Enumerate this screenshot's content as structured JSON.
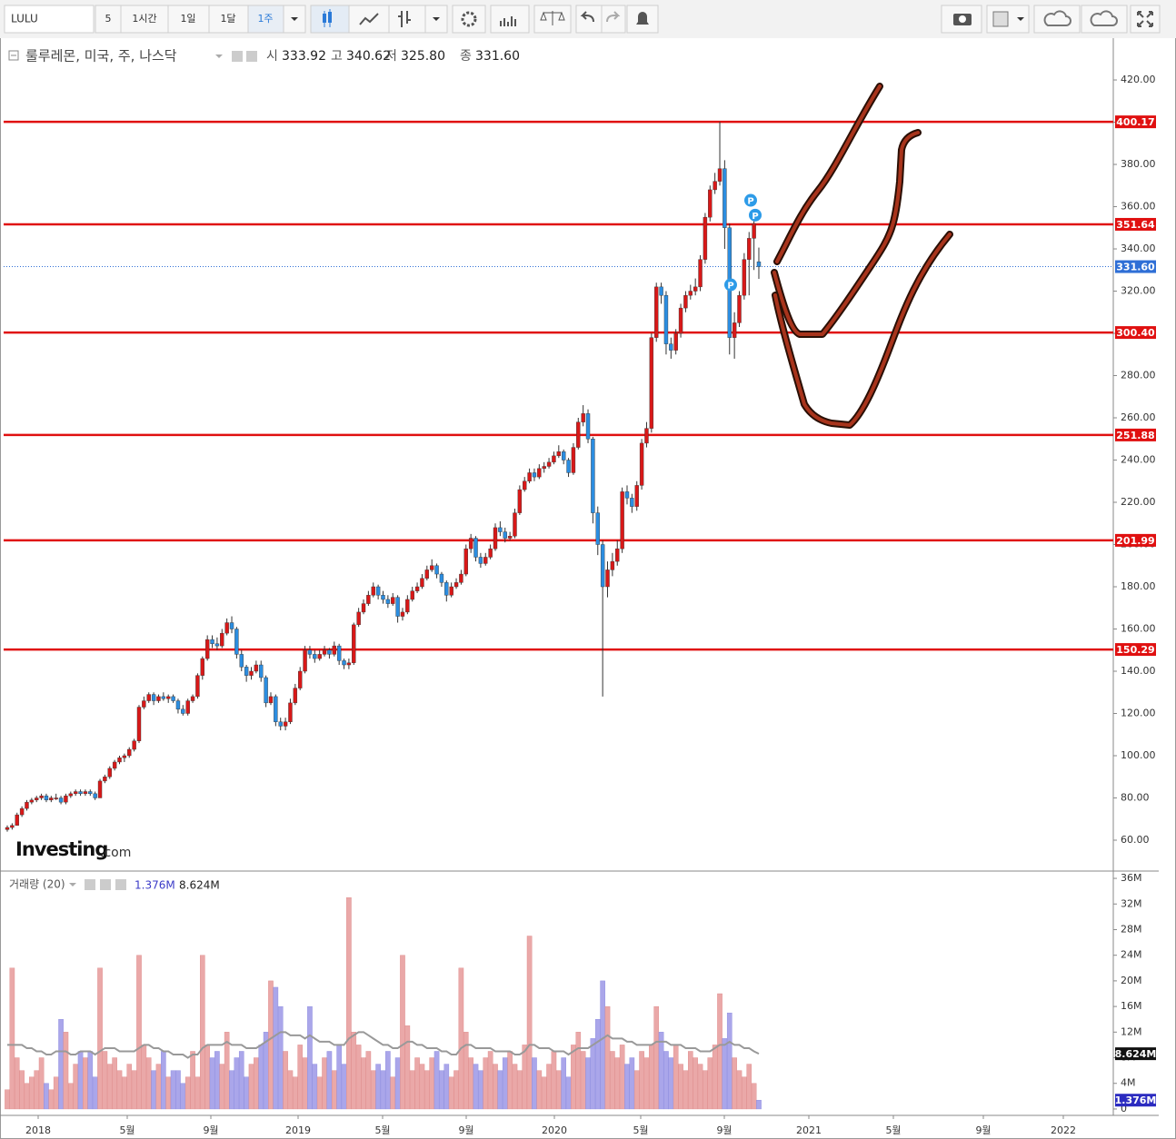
{
  "toolbar": {
    "symbol": "LULU",
    "interval": "5",
    "buttons": [
      "1시간",
      "1일",
      "1달",
      "1주"
    ]
  },
  "watermark": {
    "brand": "Investing",
    "suffix": ".com"
  },
  "chart_data": {
    "type": "candlestick",
    "title": "룰루레몬, 미국, 주, 나스닥",
    "readout": [
      {
        "label": "시",
        "value": "333.92"
      },
      {
        "label": "고",
        "value": "340.62"
      },
      {
        "label": "저",
        "value": "325.80"
      },
      {
        "label": "종",
        "value": "331.60"
      }
    ],
    "up_color": "#d81818",
    "down_color": "#2b8de0",
    "ohlc": [
      [
        65,
        67,
        64,
        66
      ],
      [
        66,
        68,
        65,
        67
      ],
      [
        67,
        73,
        67,
        72
      ],
      [
        72,
        76,
        71,
        75
      ],
      [
        75,
        79,
        74,
        78
      ],
      [
        78,
        80,
        77,
        79
      ],
      [
        79,
        81,
        78,
        80
      ],
      [
        80,
        82,
        79,
        81
      ],
      [
        81,
        82,
        78,
        79
      ],
      [
        79,
        81,
        78,
        80
      ],
      [
        79.5,
        82,
        79,
        80
      ],
      [
        80,
        81,
        77,
        78
      ],
      [
        78,
        82,
        77,
        81
      ],
      [
        81,
        83,
        80,
        82
      ],
      [
        82,
        84,
        81,
        83
      ],
      [
        83,
        84,
        81,
        82
      ],
      [
        82,
        84,
        81,
        83
      ],
      [
        83,
        84,
        81,
        82
      ],
      [
        82,
        83,
        79,
        80
      ],
      [
        80,
        89,
        80,
        88
      ],
      [
        88,
        91,
        87,
        90
      ],
      [
        90,
        95,
        89,
        94
      ],
      [
        94,
        98,
        93,
        97
      ],
      [
        97,
        100,
        96,
        99
      ],
      [
        99,
        101,
        97,
        100
      ],
      [
        100,
        104,
        99,
        103
      ],
      [
        103,
        108,
        102,
        107
      ],
      [
        107,
        124,
        106,
        123
      ],
      [
        123,
        128,
        122,
        126
      ],
      [
        126,
        130,
        125,
        129
      ],
      [
        129,
        130,
        124,
        126
      ],
      [
        126,
        129,
        125,
        128
      ],
      [
        128,
        130,
        126,
        127
      ],
      [
        127,
        129,
        125,
        128
      ],
      [
        128,
        129,
        125,
        126
      ],
      [
        126,
        127,
        120,
        122
      ],
      [
        122,
        124,
        119,
        120
      ],
      [
        120,
        127,
        119,
        126
      ],
      [
        126,
        129,
        125,
        128
      ],
      [
        128,
        139,
        127,
        138
      ],
      [
        138,
        147,
        136,
        146
      ],
      [
        146,
        157,
        145,
        155
      ],
      [
        155,
        157,
        151,
        153
      ],
      [
        153,
        156,
        150,
        152
      ],
      [
        152,
        160,
        151,
        158
      ],
      [
        158,
        165,
        157,
        163
      ],
      [
        163,
        166,
        158,
        160
      ],
      [
        160,
        161,
        146,
        148
      ],
      [
        148,
        150,
        140,
        142
      ],
      [
        142,
        143,
        135,
        138
      ],
      [
        138,
        142,
        136,
        140
      ],
      [
        140,
        145,
        139,
        143
      ],
      [
        143,
        145,
        135,
        137
      ],
      [
        137,
        138,
        123,
        125
      ],
      [
        125,
        130,
        124,
        128
      ],
      [
        128,
        129,
        114,
        116
      ],
      [
        116,
        118,
        112,
        114
      ],
      [
        114,
        118,
        112,
        116
      ],
      [
        116,
        127,
        115,
        125
      ],
      [
        125,
        134,
        124,
        132
      ],
      [
        132,
        142,
        131,
        140
      ],
      [
        140,
        152,
        139,
        150
      ],
      [
        150,
        152,
        146,
        148
      ],
      [
        148,
        150,
        144,
        146
      ],
      [
        146,
        150,
        145,
        148
      ],
      [
        148,
        152,
        147,
        150
      ],
      [
        150,
        151,
        146,
        148
      ],
      [
        148,
        154,
        147,
        152
      ],
      [
        152,
        153,
        143,
        145
      ],
      [
        145,
        146,
        141,
        143
      ],
      [
        143,
        146,
        141,
        144
      ],
      [
        144,
        163,
        143,
        162
      ],
      [
        162,
        170,
        161,
        168
      ],
      [
        168,
        174,
        167,
        172
      ],
      [
        172,
        178,
        171,
        176
      ],
      [
        176,
        182,
        175,
        180
      ],
      [
        180,
        181,
        174,
        176
      ],
      [
        176,
        178,
        172,
        174
      ],
      [
        174,
        176,
        170,
        172
      ],
      [
        172,
        177,
        171,
        175
      ],
      [
        175,
        176,
        163,
        166
      ],
      [
        166,
        170,
        164,
        168
      ],
      [
        168,
        176,
        167,
        174
      ],
      [
        174,
        180,
        173,
        178
      ],
      [
        178,
        182,
        177,
        180
      ],
      [
        180,
        186,
        179,
        184
      ],
      [
        184,
        190,
        183,
        188
      ],
      [
        188,
        193,
        187,
        190
      ],
      [
        190,
        191,
        184,
        186
      ],
      [
        186,
        187,
        180,
        182
      ],
      [
        182,
        183,
        173,
        176
      ],
      [
        176,
        182,
        175,
        180
      ],
      [
        180,
        184,
        179,
        182
      ],
      [
        182,
        188,
        181,
        186
      ],
      [
        186,
        200,
        185,
        198
      ],
      [
        198,
        205,
        196,
        203
      ],
      [
        203,
        204,
        192,
        194
      ],
      [
        194,
        196,
        189,
        191
      ],
      [
        191,
        196,
        190,
        194
      ],
      [
        194,
        200,
        193,
        198
      ],
      [
        198,
        210,
        197,
        208
      ],
      [
        208,
        211,
        204,
        206
      ],
      [
        206,
        208,
        201,
        203
      ],
      [
        203,
        206,
        202,
        204
      ],
      [
        204,
        217,
        203,
        215
      ],
      [
        215,
        228,
        214,
        226
      ],
      [
        226,
        232,
        225,
        230
      ],
      [
        230,
        236,
        229,
        234
      ],
      [
        234,
        236,
        230,
        232
      ],
      [
        232,
        238,
        231,
        236
      ],
      [
        236,
        239,
        234,
        237
      ],
      [
        237,
        241,
        236,
        239
      ],
      [
        239,
        244,
        238,
        242
      ],
      [
        242,
        247,
        241,
        244
      ],
      [
        244,
        245,
        238,
        240
      ],
      [
        240,
        241,
        232,
        234
      ],
      [
        234,
        248,
        233,
        246
      ],
      [
        246,
        260,
        245,
        258
      ],
      [
        258,
        266,
        256,
        262
      ],
      [
        262,
        264,
        248,
        250
      ],
      [
        250,
        251,
        210,
        215
      ],
      [
        215,
        218,
        195,
        200
      ],
      [
        200,
        202,
        128,
        180
      ],
      [
        180,
        192,
        175,
        188
      ],
      [
        188,
        196,
        185,
        192
      ],
      [
        192,
        202,
        190,
        198
      ],
      [
        198,
        227,
        196,
        225
      ],
      [
        225,
        228,
        219,
        222
      ],
      [
        222,
        224,
        215,
        218
      ],
      [
        218,
        230,
        216,
        228
      ],
      [
        228,
        250,
        226,
        248
      ],
      [
        248,
        258,
        246,
        255
      ],
      [
        255,
        300,
        253,
        298
      ],
      [
        298,
        324,
        296,
        322
      ],
      [
        322,
        324,
        314,
        318
      ],
      [
        318,
        320,
        290,
        295
      ],
      [
        295,
        298,
        288,
        292
      ],
      [
        292,
        302,
        290,
        300
      ],
      [
        300,
        314,
        298,
        312
      ],
      [
        312,
        320,
        310,
        318
      ],
      [
        318,
        323,
        316,
        320
      ],
      [
        320,
        326,
        318,
        322
      ],
      [
        322,
        337,
        320,
        335
      ],
      [
        335,
        357,
        333,
        355
      ],
      [
        355,
        370,
        353,
        368
      ],
      [
        368,
        376,
        366,
        372
      ],
      [
        372,
        400.17,
        370,
        378
      ],
      [
        378,
        382,
        340,
        350
      ],
      [
        350,
        352,
        290,
        298
      ],
      [
        298,
        310,
        288,
        305
      ],
      [
        305,
        320,
        303,
        318
      ],
      [
        318,
        338,
        316,
        335
      ],
      [
        335,
        348,
        318,
        345
      ],
      [
        345,
        356,
        330,
        352
      ],
      [
        333.92,
        340.62,
        325.8,
        331.6
      ]
    ],
    "ylim": [
      45.8,
      439.8
    ],
    "yticks": [
      {
        "value": 60,
        "label": "60.00"
      },
      {
        "value": 80,
        "label": "80.00"
      },
      {
        "value": 100,
        "label": "100.00"
      },
      {
        "value": 120,
        "label": "120.00"
      },
      {
        "value": 140,
        "label": "140.00"
      },
      {
        "value": 160,
        "label": "160.00"
      },
      {
        "value": 180,
        "label": "180.00"
      },
      {
        "value": 200,
        "label": "200.00"
      },
      {
        "value": 220,
        "label": "220.00"
      },
      {
        "value": 240,
        "label": "240.00"
      },
      {
        "value": 260,
        "label": "260.00"
      },
      {
        "value": 280,
        "label": "280.00"
      },
      {
        "value": 300,
        "label": "300.00"
      },
      {
        "value": 320,
        "label": "320.00"
      },
      {
        "value": 340,
        "label": "340.00"
      },
      {
        "value": 360,
        "label": "360.00"
      },
      {
        "value": 380,
        "label": "380.00"
      },
      {
        "value": 400,
        "label": "400.00"
      },
      {
        "value": 420,
        "label": "420.00"
      }
    ],
    "hlines": {
      "color": "#e01010",
      "values": [
        400.17,
        351.64,
        {
          "value": 300.4,
          "label": "300.40"
        },
        251.88,
        201.99,
        150.29
      ]
    },
    "last_price": {
      "value": 331.6,
      "label": "331.60",
      "color": "#2f6fd6"
    },
    "events": [
      {
        "label": "P",
        "value": 363
      },
      {
        "label": "P",
        "value": 356
      },
      {
        "label": "P",
        "value": 323
      }
    ],
    "event_color": "#2d9be8",
    "xtick_labels": [
      "2018",
      "5월",
      "9월",
      "2019",
      "5월",
      "9월",
      "2020",
      "5월",
      "9월",
      "2021",
      "5월",
      "9월",
      "2022"
    ],
    "volume": {
      "type": "bar",
      "label": "거래량 (20)",
      "up_color": "#eaa8a8",
      "down_color": "#aaa6ea",
      "values": [
        3,
        22,
        8,
        6,
        4,
        5,
        6,
        8,
        4,
        3,
        5,
        14,
        12,
        4,
        7,
        9,
        8,
        9,
        5,
        22,
        9,
        7,
        8,
        6,
        5,
        7,
        6,
        24,
        10,
        8,
        6,
        7,
        9,
        5,
        6,
        6,
        4,
        5,
        9,
        5,
        24,
        10,
        8,
        9,
        7,
        12,
        6,
        8,
        9,
        5,
        7,
        8,
        10,
        12,
        20,
        19,
        16,
        9,
        6,
        5,
        10,
        8,
        16,
        7,
        5,
        8,
        9,
        6,
        10,
        7,
        33,
        12,
        10,
        8,
        9,
        6,
        7,
        6,
        9,
        5,
        8,
        24,
        13,
        6,
        8,
        7,
        6,
        8,
        9,
        6,
        7,
        5,
        6,
        22,
        12,
        8,
        7,
        6,
        8,
        9,
        7,
        6,
        8,
        9,
        7,
        6,
        10,
        27,
        8,
        6,
        5,
        7,
        9,
        6,
        8,
        5,
        10,
        12,
        9,
        8,
        11,
        14,
        20,
        16,
        9,
        8,
        10,
        7,
        8,
        6,
        9,
        8,
        10,
        16,
        12,
        9,
        8,
        10,
        7,
        6,
        9,
        8,
        7,
        6,
        8,
        10,
        18,
        11,
        15,
        8,
        6,
        5,
        7,
        4,
        1.376
      ],
      "ma": {
        "color": "#999999",
        "values": [
          10,
          10,
          10,
          10,
          9.5,
          9.5,
          9,
          9,
          8.5,
          8.5,
          9,
          9,
          9,
          8.5,
          8.5,
          9,
          9,
          9,
          8.5,
          9,
          9.5,
          9.5,
          9.5,
          9,
          9,
          9,
          9,
          9.5,
          10,
          10,
          9.5,
          9.5,
          9,
          9,
          8.5,
          8.5,
          8.5,
          8,
          8.5,
          8.5,
          9.5,
          10,
          10,
          10,
          10,
          10.5,
          10,
          10,
          10,
          9.5,
          9.5,
          9.5,
          10,
          10.5,
          11,
          11.5,
          12,
          12,
          11.5,
          11.5,
          11.5,
          11,
          11.5,
          11,
          10.5,
          10.5,
          10.5,
          10,
          10,
          10,
          11,
          11.5,
          12,
          12,
          11.5,
          11,
          10.5,
          10,
          10,
          9.5,
          9.5,
          10,
          10.5,
          10.5,
          10,
          10,
          9.5,
          9.5,
          9.5,
          9,
          9,
          8.5,
          8.5,
          9.5,
          10,
          10,
          9.5,
          9.5,
          9.5,
          9.5,
          9,
          9,
          9,
          9,
          8.5,
          8.5,
          9,
          10,
          10,
          9.5,
          9.5,
          9.5,
          9,
          9,
          9,
          8.5,
          9,
          9.5,
          9.5,
          9.5,
          10,
          10.5,
          11,
          11.5,
          11,
          11,
          11,
          10.5,
          10.5,
          10,
          10,
          10,
          10,
          10.5,
          10.5,
          10.5,
          10,
          10,
          10,
          9.5,
          9.5,
          9.5,
          9,
          9,
          9,
          9.5,
          10,
          10,
          10.5,
          10,
          10,
          9.5,
          9.5,
          9,
          8.624
        ]
      },
      "ylim": [
        -1,
        37
      ],
      "yticks": [
        0,
        {
          "value": 4,
          "label": "4M"
        },
        {
          "value": 8,
          "label": "8M"
        },
        {
          "value": 12,
          "label": "12M"
        },
        {
          "value": 16,
          "label": "16M"
        },
        {
          "value": 20,
          "label": "20M"
        },
        {
          "value": 24,
          "label": "24M"
        },
        {
          "value": 28,
          "label": "28M"
        },
        {
          "value": 32,
          "label": "32M"
        },
        {
          "value": 36,
          "label": "36M"
        }
      ],
      "value_label": "1.376M",
      "ma_label": "8.624M",
      "value_tag_color": "#2b2bc0",
      "ma_tag_color": "#111111"
    }
  }
}
